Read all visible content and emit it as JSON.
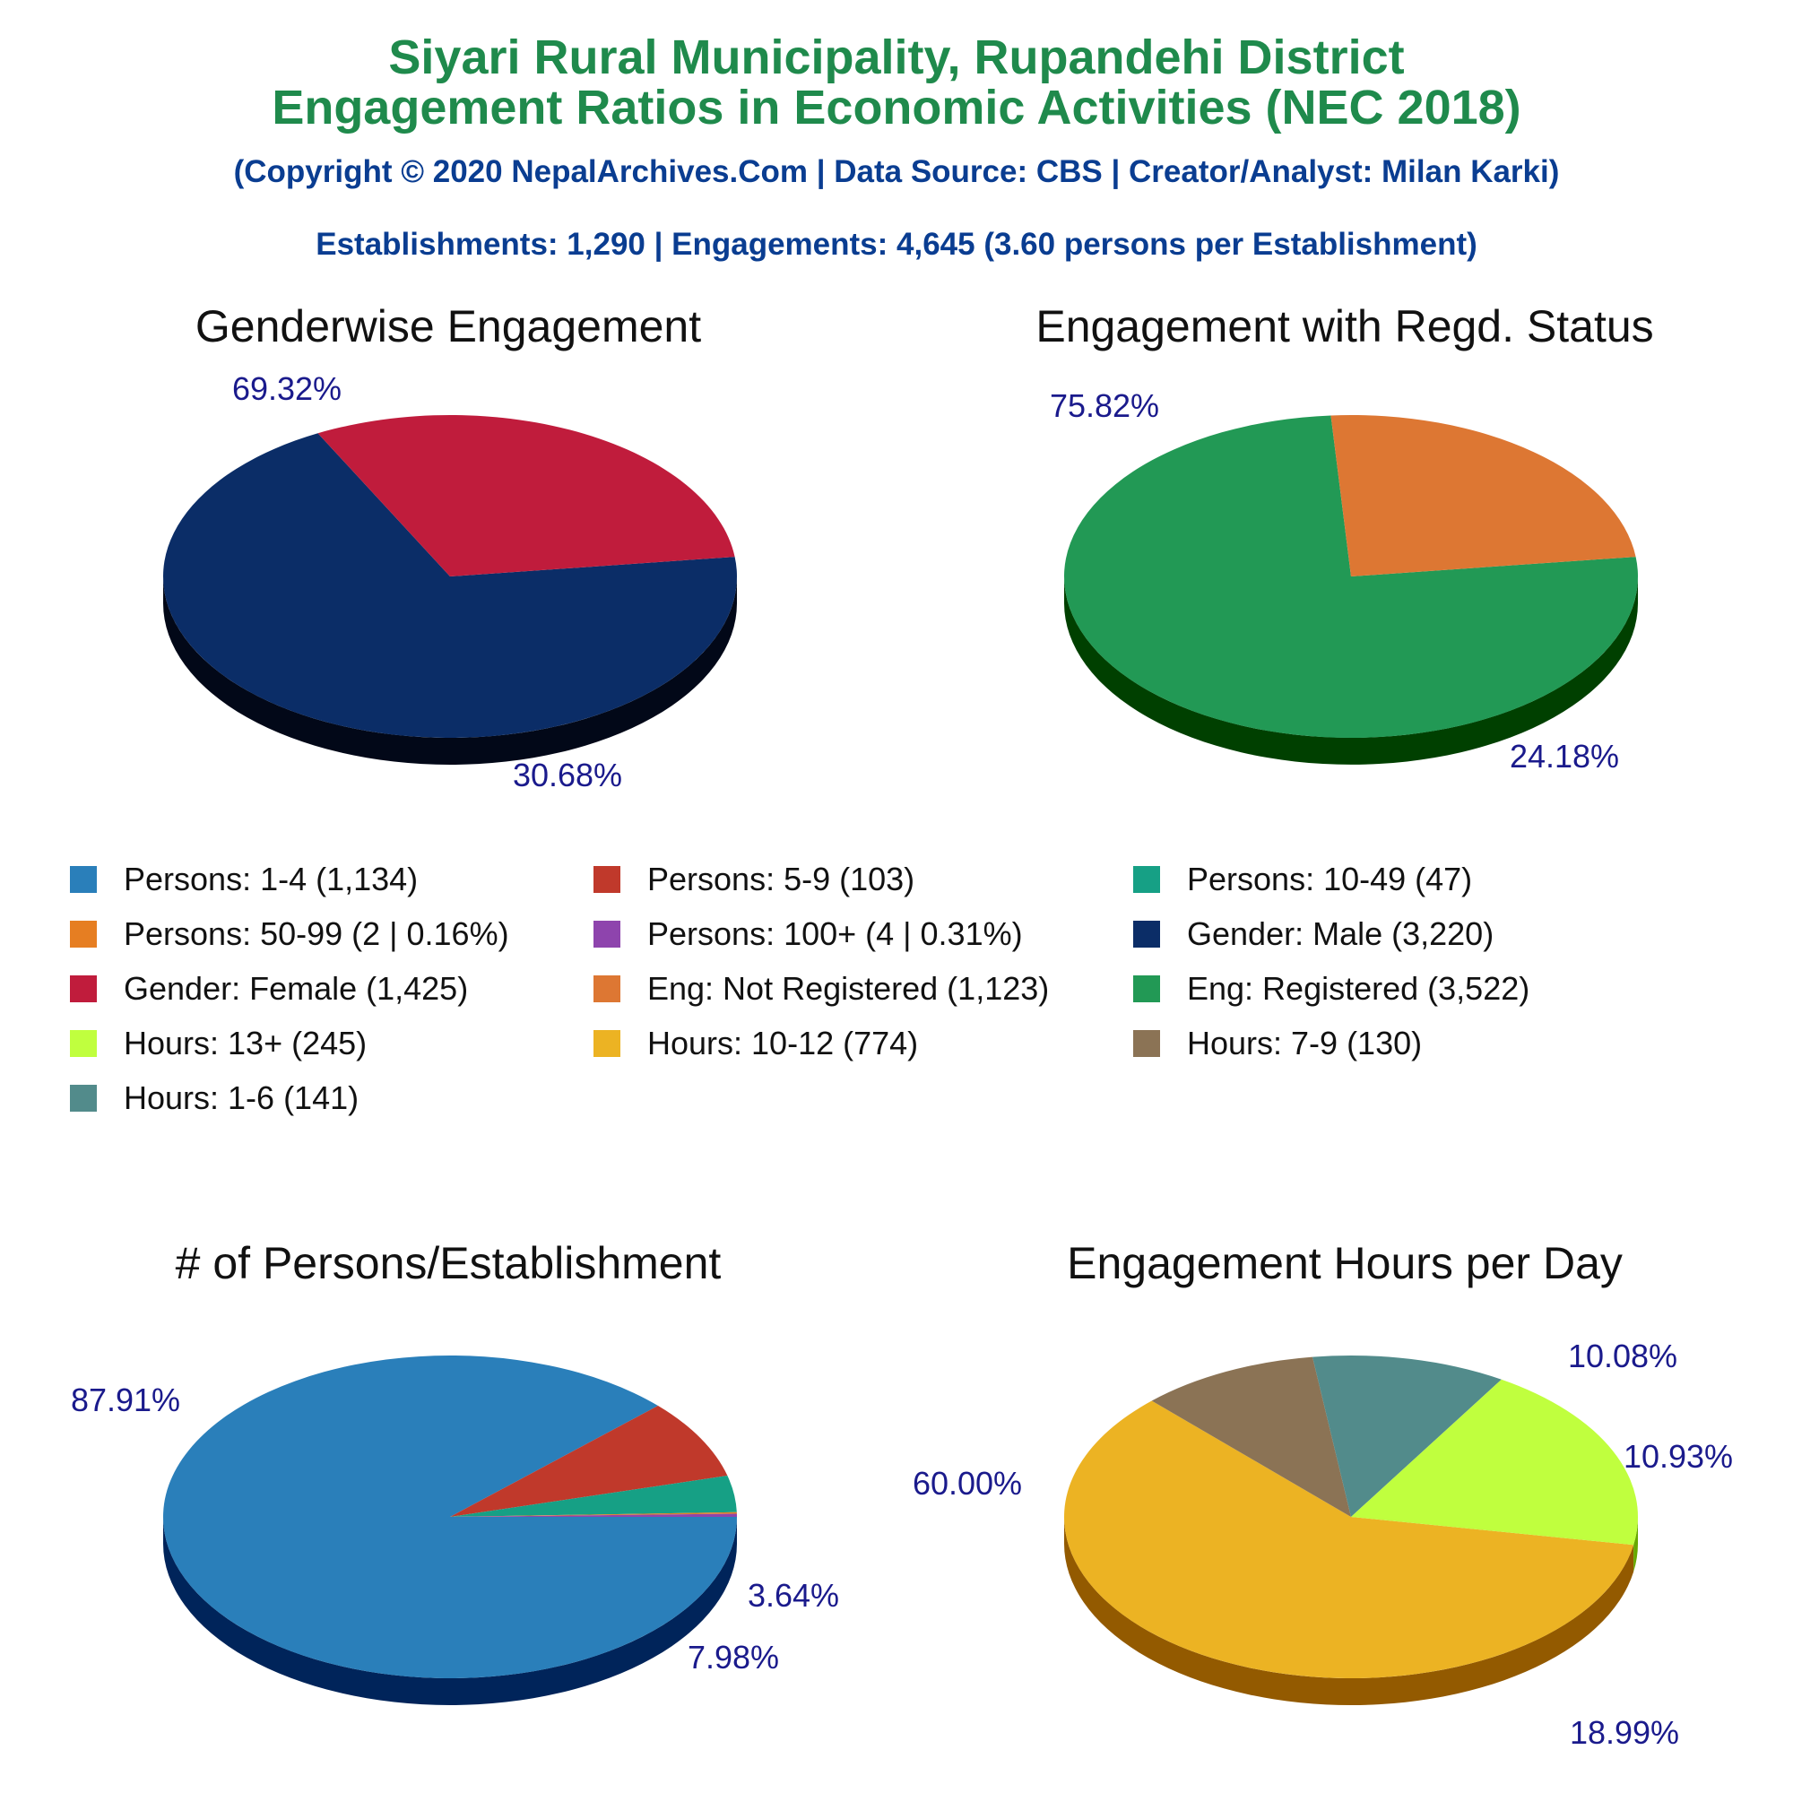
{
  "header": {
    "title_line1": "Siyari Rural Municipality, Rupandehi District",
    "title_line2": "Engagement Ratios in Economic Activities (NEC 2018)",
    "copyright": "(Copyright © 2020 NepalArchives.Com | Data Source: CBS | Creator/Analyst: Milan Karki)",
    "summary": "Establishments: 1,290 | Engagements: 4,645 (3.60 persons per Establishment)"
  },
  "legend": [
    {
      "label": "Persons: 1-4 (1,134)",
      "color": "#2a7fba"
    },
    {
      "label": "Persons: 5-9 (103)",
      "color": "#c0392b"
    },
    {
      "label": "Persons: 10-49 (47)",
      "color": "#16a085"
    },
    {
      "label": "Persons: 50-99 (2 | 0.16%)",
      "color": "#e67e22"
    },
    {
      "label": "Persons: 100+ (4 | 0.31%)",
      "color": "#8e44ad"
    },
    {
      "label": "Gender: Male (3,220)",
      "color": "#0b2d67"
    },
    {
      "label": "Gender: Female (1,425)",
      "color": "#c01c3c"
    },
    {
      "label": "Eng: Not Registered (1,123)",
      "color": "#dd7733"
    },
    {
      "label": "Eng: Registered (3,522)",
      "color": "#229955"
    },
    {
      "label": "Hours: 13+ (245)",
      "color": "#c0ff3e"
    },
    {
      "label": "Hours: 10-12 (774)",
      "color": "#ecb323"
    },
    {
      "label": "Hours: 7-9 (130)",
      "color": "#8b7355"
    },
    {
      "label": "Hours: 1-6 (141)",
      "color": "#528b8b"
    }
  ],
  "chart_data": [
    {
      "type": "pie",
      "title": "Genderwise Engagement",
      "slices": [
        {
          "name": "Gender: Male",
          "value": 3220,
          "label": "69.32%",
          "color": "#0b2d67",
          "side": "#020818"
        },
        {
          "name": "Gender: Female",
          "value": 1425,
          "label": "30.68%",
          "color": "#c01c3c",
          "side": "#650000"
        }
      ]
    },
    {
      "type": "pie",
      "title": "Engagement with Regd. Status",
      "slices": [
        {
          "name": "Eng: Registered",
          "value": 3522,
          "label": "75.82%",
          "color": "#229955",
          "side": "#004000"
        },
        {
          "name": "Eng: Not Registered",
          "value": 1123,
          "label": "24.18%",
          "color": "#dd7733",
          "side": "#7a1d00"
        }
      ]
    },
    {
      "type": "pie",
      "title": "# of Persons/Establishment",
      "slices": [
        {
          "name": "Persons: 1-4",
          "value": 1134,
          "label": "87.91%",
          "color": "#2a7fba",
          "side": "#00245a"
        },
        {
          "name": "Persons: 5-9",
          "value": 103,
          "label": "7.98%",
          "color": "#c0392b",
          "side": "#650000"
        },
        {
          "name": "Persons: 10-49",
          "value": 47,
          "label": "3.64%",
          "color": "#16a085",
          "side": "#004a30"
        },
        {
          "name": "Persons: 50-99",
          "value": 2,
          "label": "",
          "color": "#e67e22",
          "side": "#7a2e00"
        },
        {
          "name": "Persons: 100+",
          "value": 4,
          "label": "",
          "color": "#8e44ad",
          "side": "#3a005a"
        }
      ]
    },
    {
      "type": "pie",
      "title": "Engagement Hours per Day",
      "slices": [
        {
          "name": "Hours: 10-12",
          "value": 774,
          "label": "60.00%",
          "color": "#ecb323",
          "side": "#935a00"
        },
        {
          "name": "Hours: 7-9",
          "value": 130,
          "label": "10.08%",
          "color": "#8b7355",
          "side": "#3a2a10"
        },
        {
          "name": "Hours: 1-6",
          "value": 141,
          "label": "10.93%",
          "color": "#528b8b",
          "side": "#1a3a3a"
        },
        {
          "name": "Hours: 13+",
          "value": 245,
          "label": "18.99%",
          "color": "#c0ff3e",
          "side": "#66a800"
        }
      ]
    }
  ]
}
